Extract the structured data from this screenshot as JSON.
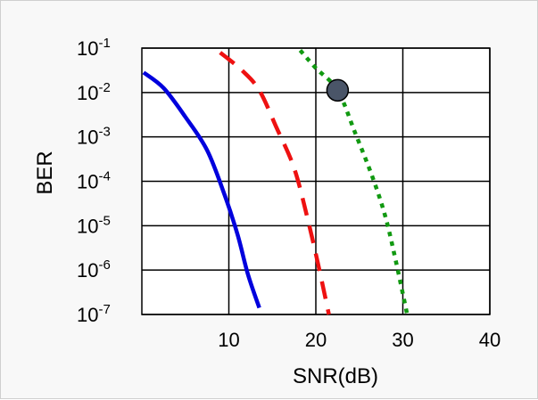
{
  "chart_data": {
    "type": "line",
    "title": "",
    "xlabel": "SNR(dB)",
    "ylabel": "BER",
    "xlim": [
      0,
      40
    ],
    "ylim_exponent": [
      -7,
      -1
    ],
    "yscale": "log",
    "grid": true,
    "x_ticks": [
      {
        "value": 10,
        "label": "10"
      },
      {
        "value": 20,
        "label": "20"
      },
      {
        "value": 30,
        "label": "30"
      },
      {
        "value": 40,
        "label": "40"
      }
    ],
    "y_ticks": [
      {
        "exp": -1,
        "base": "10",
        "sup": "-1"
      },
      {
        "exp": -2,
        "base": "10",
        "sup": "-2"
      },
      {
        "exp": -3,
        "base": "10",
        "sup": "-3"
      },
      {
        "exp": -4,
        "base": "10",
        "sup": "-4"
      },
      {
        "exp": -5,
        "base": "10",
        "sup": "-5"
      },
      {
        "exp": -6,
        "base": "10",
        "sup": "-6"
      },
      {
        "exp": -7,
        "base": "10",
        "sup": "-7"
      }
    ],
    "series": [
      {
        "color": "#0000dd",
        "style": "solid",
        "points": [
          [
            0.2,
            -1.55
          ],
          [
            2.5,
            -1.9
          ],
          [
            5,
            -2.55
          ],
          [
            7.5,
            -3.3
          ],
          [
            9.5,
            -4.3
          ],
          [
            11,
            -5.2
          ],
          [
            12.2,
            -6.1
          ],
          [
            13.5,
            -6.85
          ]
        ]
      },
      {
        "color": "#ee1111",
        "style": "dashed",
        "points": [
          [
            9,
            -1.1
          ],
          [
            11.5,
            -1.5
          ],
          [
            13.5,
            -1.95
          ],
          [
            15.5,
            -2.8
          ],
          [
            17.5,
            -3.7
          ],
          [
            19,
            -4.8
          ],
          [
            20.3,
            -5.9
          ],
          [
            21.5,
            -7.0
          ]
        ]
      },
      {
        "color": "#119911",
        "style": "dotted",
        "points": [
          [
            18.2,
            -1.05
          ],
          [
            20,
            -1.45
          ],
          [
            22.5,
            -1.95
          ],
          [
            24.5,
            -2.9
          ],
          [
            26.5,
            -3.9
          ],
          [
            28,
            -4.8
          ],
          [
            29.2,
            -5.8
          ],
          [
            30.5,
            -7.0
          ]
        ]
      }
    ],
    "marker": {
      "x": 22.5,
      "y_exp": -1.95,
      "color": "#4a5568"
    }
  }
}
